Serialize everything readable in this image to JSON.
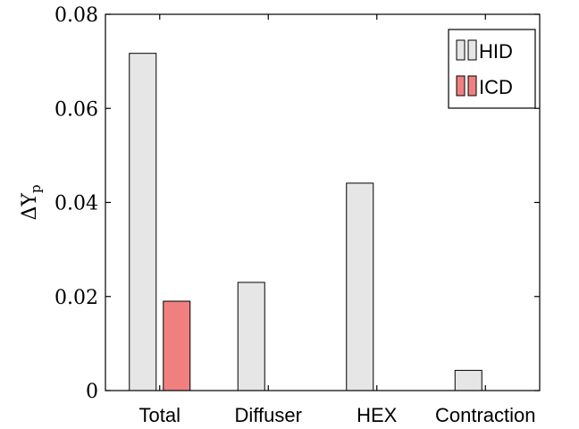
{
  "chart_data": {
    "type": "bar",
    "categories": [
      "Total",
      "Diffuser",
      "HEX",
      "Contraction"
    ],
    "series": [
      {
        "name": "HID",
        "values": [
          0.0717,
          0.023,
          0.0441,
          0.0043
        ],
        "color": "#e6e6e6"
      },
      {
        "name": "ICD",
        "values": [
          0.019,
          null,
          null,
          null
        ],
        "color": "#f08080"
      }
    ],
    "xlabel": "",
    "ylabel": "ΔYp",
    "ylim": [
      0,
      0.08
    ],
    "yticks": [
      0,
      0.02,
      0.04,
      0.06,
      0.08
    ],
    "ytick_labels": [
      "0",
      "0.02",
      "0.04",
      "0.06",
      "0.08"
    ],
    "legend_position": "top-right",
    "grid": false
  }
}
